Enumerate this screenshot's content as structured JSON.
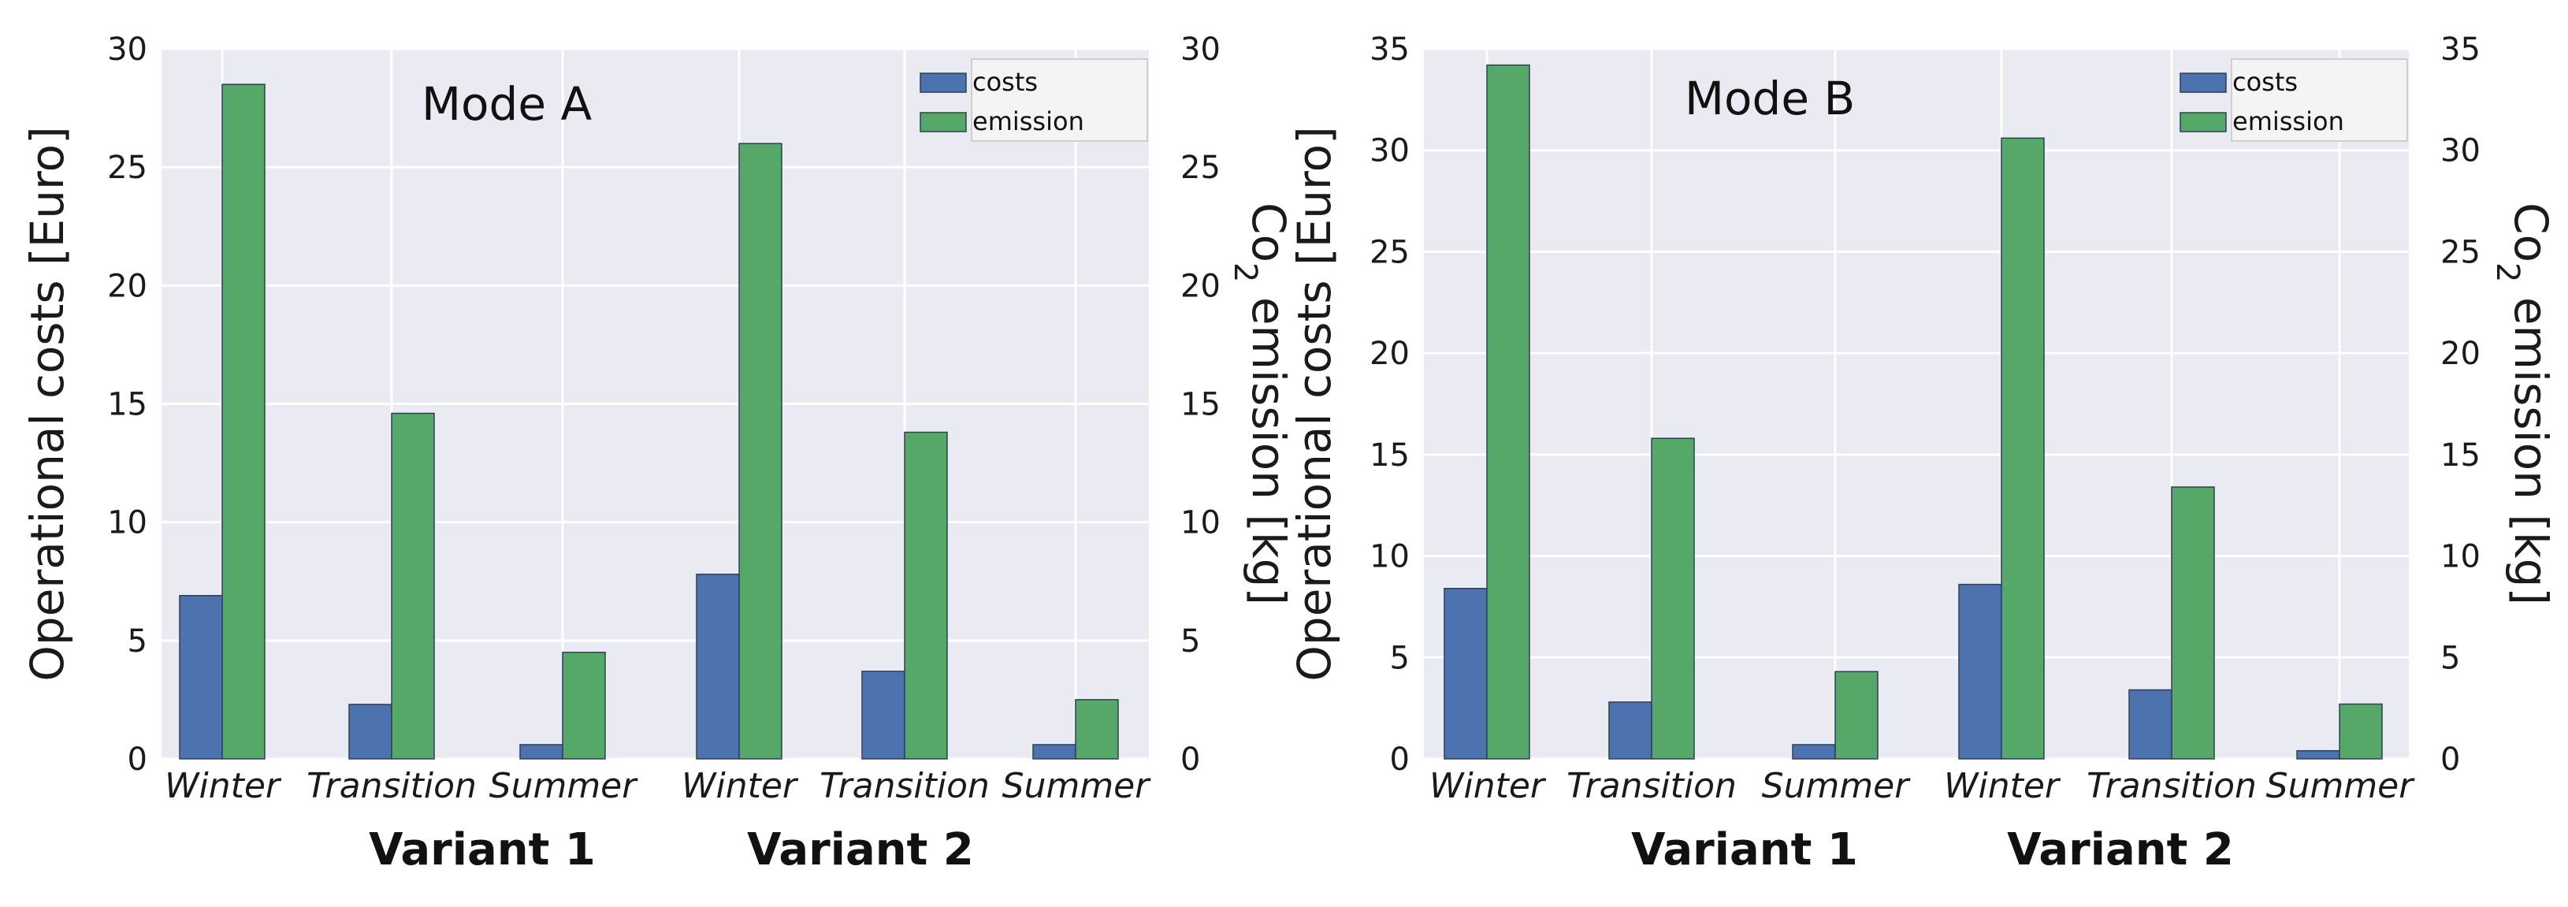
{
  "colors": {
    "costs": "#4c72b0",
    "emission": "#55a868",
    "plot_bg": "#eaeaf2",
    "grid": "#ffffff",
    "bar_edge": "#2f3f55"
  },
  "chart_data": [
    {
      "type": "bar",
      "title": "Mode A",
      "categories": [
        "Winter",
        "Transition",
        "Summer",
        "Winter",
        "Transition",
        "Summer"
      ],
      "groups": [
        "Variant 1",
        "Variant 2"
      ],
      "series": [
        {
          "name": "costs",
          "axis": "left",
          "values": [
            6.9,
            2.3,
            0.6,
            7.8,
            3.7,
            0.6
          ]
        },
        {
          "name": "emission",
          "axis": "right",
          "values": [
            28.5,
            14.6,
            4.5,
            26.0,
            13.8,
            2.5
          ]
        }
      ],
      "ylabel": "Operational costs  [Euro]",
      "ylabel_right": "Co2 emission [kg]",
      "ylim": [
        0,
        30
      ],
      "ylim_right": [
        0,
        30
      ],
      "yticks": [
        "0",
        "5",
        "10",
        "15",
        "20",
        "25",
        "30"
      ],
      "yticks_right": [
        "0",
        "5",
        "10",
        "15",
        "20",
        "25",
        "30"
      ],
      "legend": [
        "costs",
        "emission"
      ],
      "legend_loc": "top-right",
      "grid": true
    },
    {
      "type": "bar",
      "title": "Mode B",
      "categories": [
        "Winter",
        "Transition",
        "Summer",
        "Winter",
        "Transition",
        "Summer"
      ],
      "groups": [
        "Variant 1",
        "Variant 2"
      ],
      "series": [
        {
          "name": "costs",
          "axis": "left",
          "values": [
            8.4,
            2.8,
            0.7,
            8.6,
            3.4,
            0.4
          ]
        },
        {
          "name": "emission",
          "axis": "right",
          "values": [
            34.2,
            15.8,
            4.3,
            30.6,
            13.4,
            2.7
          ]
        }
      ],
      "ylabel": "Operational costs  [Euro]",
      "ylabel_right": "Co2 emission [kg]",
      "ylim": [
        0,
        35
      ],
      "ylim_right": [
        0,
        35
      ],
      "yticks": [
        "0",
        "5",
        "10",
        "15",
        "20",
        "25",
        "30",
        "35"
      ],
      "yticks_right": [
        "0",
        "5",
        "10",
        "15",
        "20",
        "25",
        "30",
        "35"
      ],
      "legend": [
        "costs",
        "emission"
      ],
      "legend_loc": "top-right",
      "grid": true
    }
  ]
}
